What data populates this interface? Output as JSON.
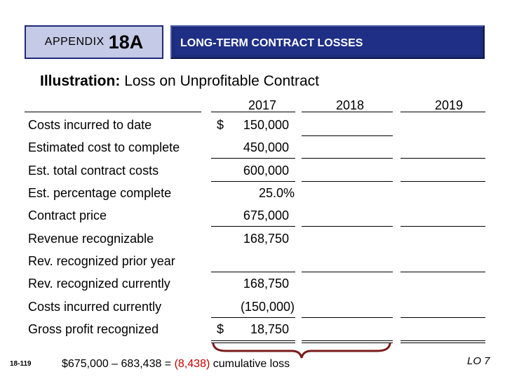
{
  "header": {
    "appendix_label": "APPENDIX",
    "appendix_number": "18A",
    "title": "LONG-TERM CONTRACT LOSSES"
  },
  "illustration": {
    "label": "Illustration:",
    "text": "Loss on Unprofitable Contract"
  },
  "years": [
    "2017",
    "2018",
    "2019"
  ],
  "rows": [
    {
      "label": "Costs incurred to date",
      "dollar": "$",
      "value": "150,000"
    },
    {
      "label": "Estimated cost to complete",
      "dollar": "",
      "value": "450,000"
    },
    {
      "label": "Est. total contract costs",
      "dollar": "",
      "value": "600,000"
    },
    {
      "label": "Est. percentage complete",
      "dollar": "",
      "value": "25.0%"
    },
    {
      "label": "Contract price",
      "dollar": "",
      "value": "675,000"
    },
    {
      "label": "Revenue recognizable",
      "dollar": "",
      "value": "168,750"
    },
    {
      "label": "Rev. recognized prior year",
      "dollar": "",
      "value": ""
    },
    {
      "label": "Rev. recognized currently",
      "dollar": "",
      "value": "168,750"
    },
    {
      "label": "Costs incurred currently",
      "dollar": "",
      "value": "(150,000)"
    },
    {
      "label": "Gross profit recognized",
      "dollar": "$",
      "value": "18,750"
    }
  ],
  "footer": {
    "page_number": "18-119",
    "equation_prefix": "$675,000 – 683,438 = ",
    "equation_loss": "(8,438)",
    "equation_suffix": " cumulative loss",
    "lo": "LO 7"
  },
  "colors": {
    "title_bg": "#1f2f86",
    "appendix_bg": "#c5cae6",
    "loss_red": "#c00000",
    "brace": "#7a1a1a"
  }
}
